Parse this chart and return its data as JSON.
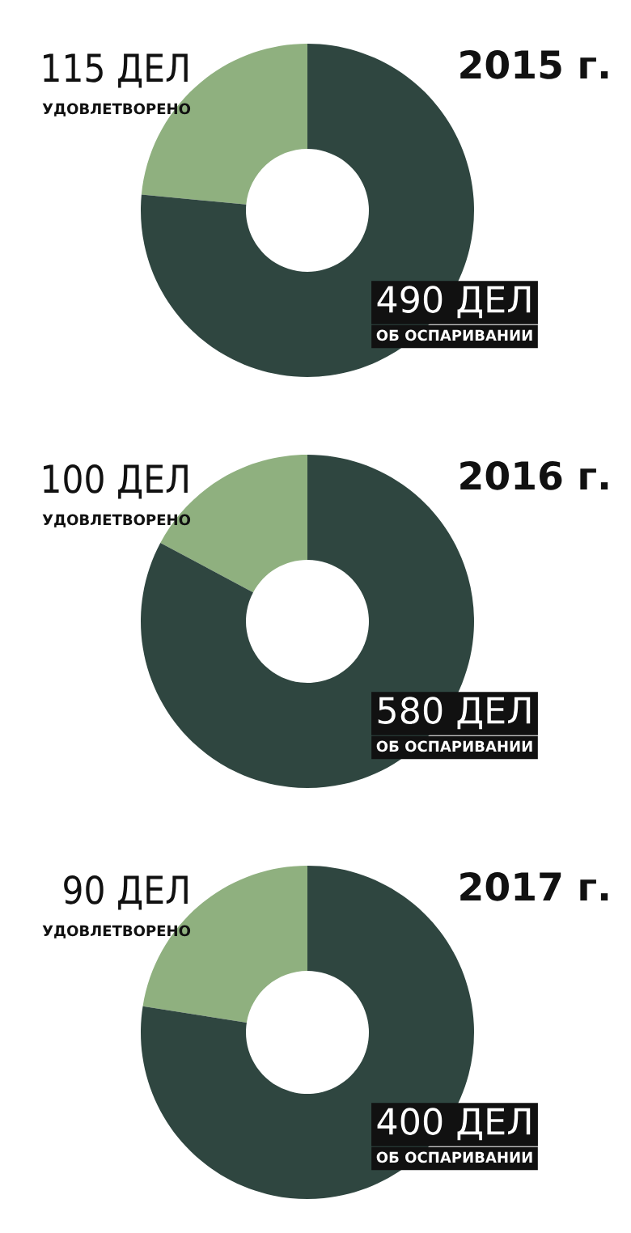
{
  "chart_data": [
    {
      "type": "donut",
      "title": "2015 г.",
      "categories": [
        "УДОВЛЕТВОРЕНО",
        "ОБ ОСПАРИВАНИИ"
      ],
      "values": [
        23.5,
        76.5
      ],
      "colors": [
        "#8fb07f",
        "#2f4640"
      ],
      "annotations": [
        "115 ДЕЛ",
        "490 ДЕЛ"
      ]
    },
    {
      "type": "donut",
      "title": "2016 г.",
      "categories": [
        "УДОВЛЕТВОРЕНО",
        "ОБ ОСПАРИВАНИИ"
      ],
      "values": [
        17.2,
        82.8
      ],
      "colors": [
        "#8fb07f",
        "#2f4640"
      ],
      "annotations": [
        "100 ДЕЛ",
        "580 ДЕЛ"
      ]
    },
    {
      "type": "donut",
      "title": "2017 г.",
      "categories": [
        "УДОВЛЕТВОРЕНО",
        "ОБ ОСПАРИВАНИИ"
      ],
      "values": [
        22.5,
        77.5
      ],
      "colors": [
        "#8fb07f",
        "#2f4640"
      ],
      "annotations": [
        "90 ДЕЛ",
        "400 ДЕЛ"
      ]
    }
  ]
}
